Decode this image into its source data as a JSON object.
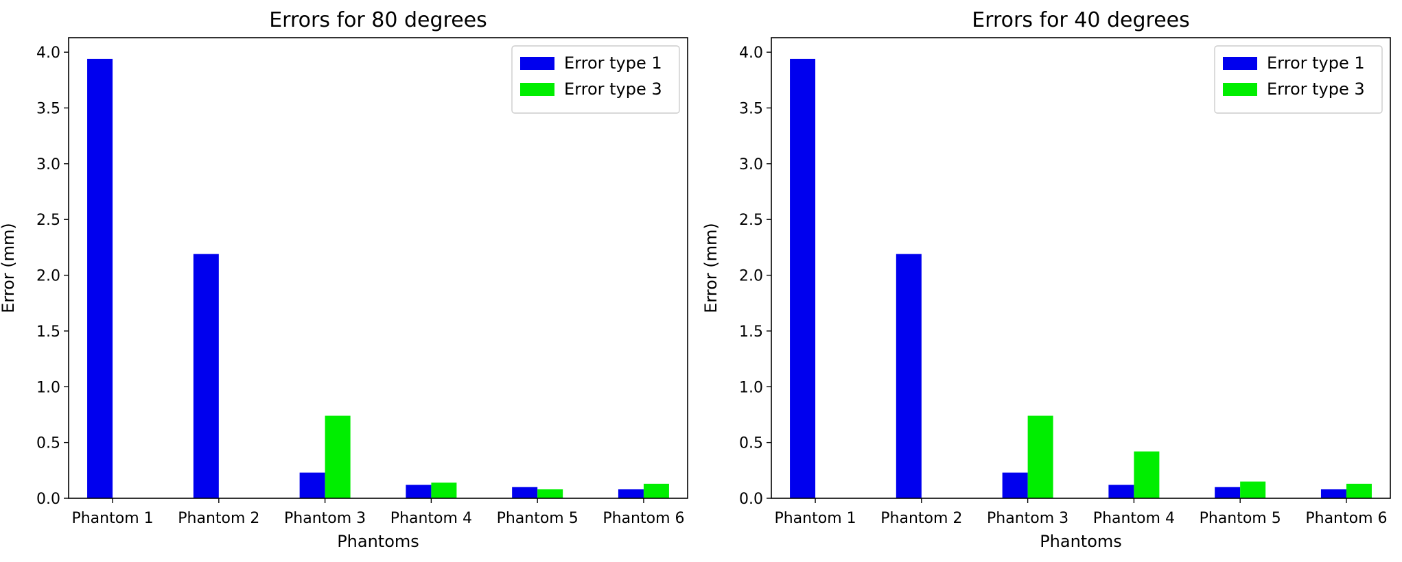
{
  "chart_data": [
    {
      "type": "bar",
      "title": "Errors for 80 degrees",
      "xlabel": "Phantoms",
      "ylabel": "Error (mm)",
      "ylim": [
        0,
        4.13
      ],
      "yticks": [
        "0.0",
        "0.5",
        "1.0",
        "1.5",
        "2.0",
        "2.5",
        "3.0",
        "3.5",
        "4.0"
      ],
      "categories": [
        "Phantom 1",
        "Phantom 2",
        "Phantom 3",
        "Phantom 4",
        "Phantom 5",
        "Phantom 6"
      ],
      "series": [
        {
          "name": "Error type 1",
          "color": "#0000ee",
          "values": [
            3.94,
            2.19,
            0.23,
            0.12,
            0.1,
            0.08
          ]
        },
        {
          "name": "Error type 3",
          "color": "#00ee00",
          "values": [
            0,
            0,
            0.74,
            0.14,
            0.08,
            0.13
          ]
        }
      ],
      "legend_position": "top-right",
      "grid": false
    },
    {
      "type": "bar",
      "title": "Errors for 40 degrees",
      "xlabel": "Phantoms",
      "ylabel": "Error (mm)",
      "ylim": [
        0,
        4.13
      ],
      "yticks": [
        "0.0",
        "0.5",
        "1.0",
        "1.5",
        "2.0",
        "2.5",
        "3.0",
        "3.5",
        "4.0"
      ],
      "categories": [
        "Phantom 1",
        "Phantom 2",
        "Phantom 3",
        "Phantom 4",
        "Phantom 5",
        "Phantom 6"
      ],
      "series": [
        {
          "name": "Error type 1",
          "color": "#0000ee",
          "values": [
            3.94,
            2.19,
            0.23,
            0.12,
            0.1,
            0.08
          ]
        },
        {
          "name": "Error type 3",
          "color": "#00ee00",
          "values": [
            0,
            0,
            0.74,
            0.42,
            0.15,
            0.13
          ]
        }
      ],
      "legend_position": "top-right",
      "grid": false
    }
  ]
}
